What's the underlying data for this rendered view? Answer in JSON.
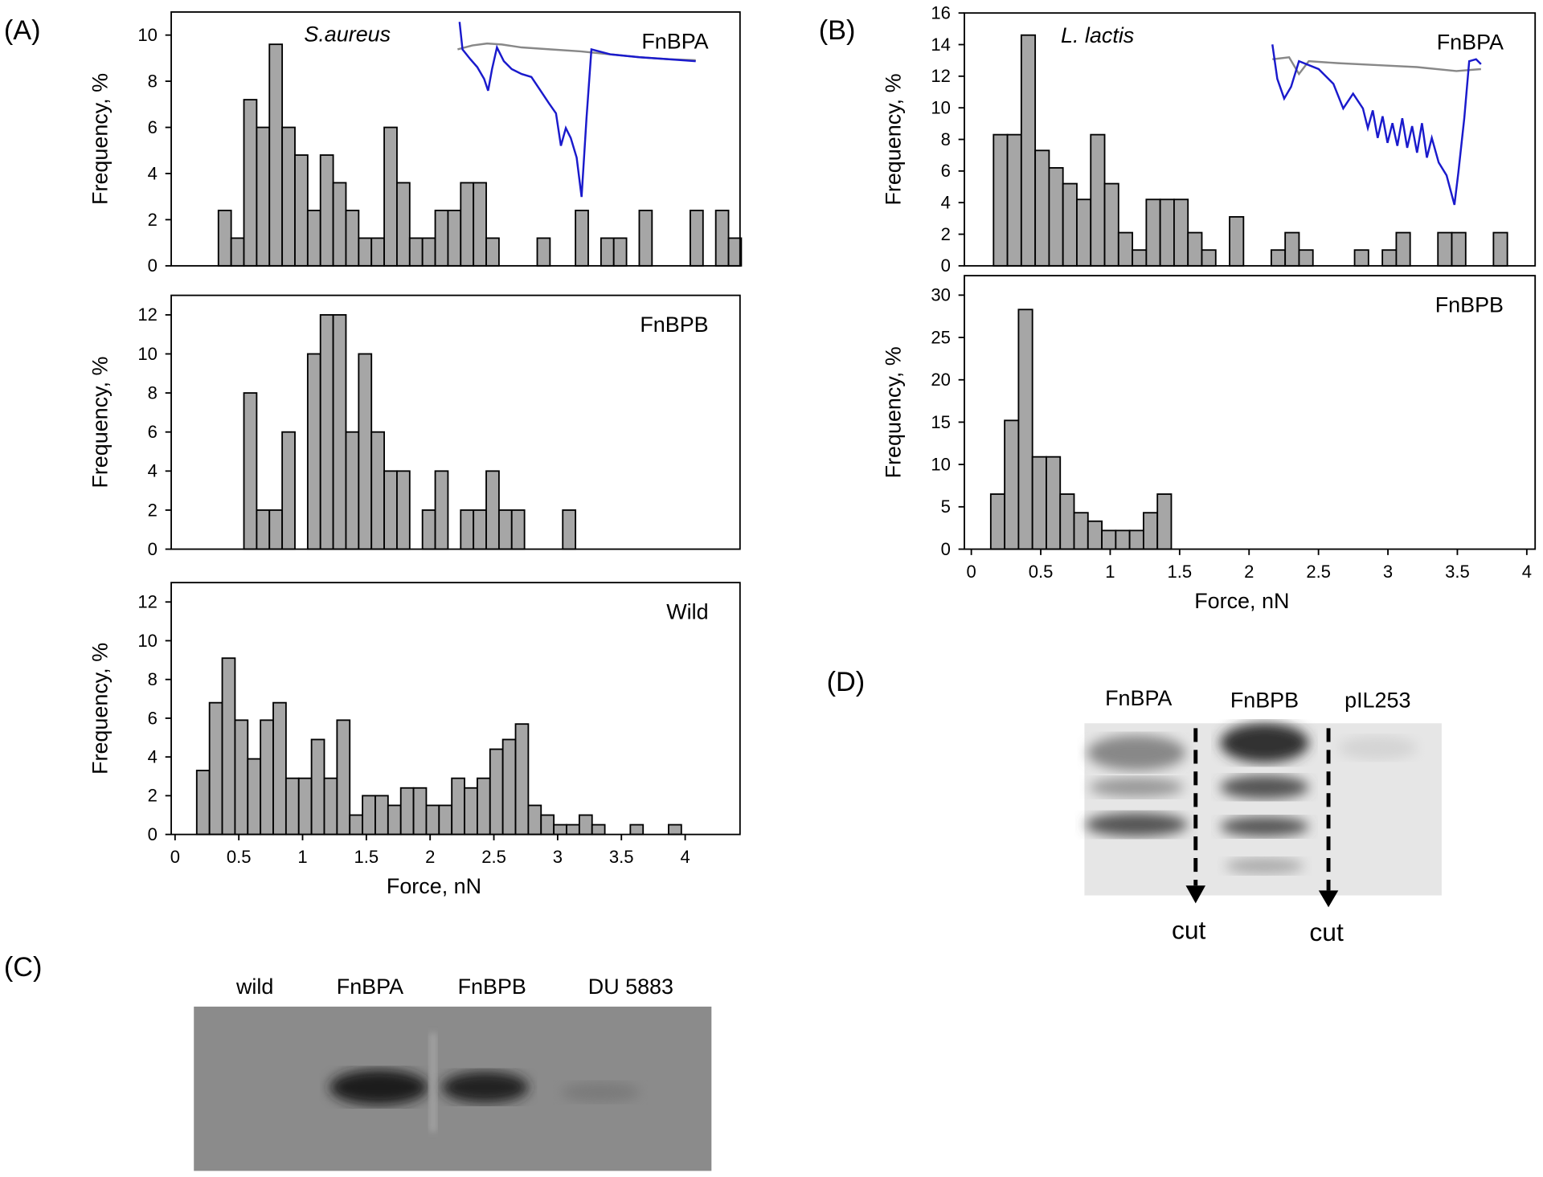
{
  "chart_data": [
    {
      "type": "histogram",
      "title": "FnBPA",
      "annotation": "S.aureus",
      "y_label": "Frequency, %",
      "color": "#a6a6a6",
      "bins": [
        0.34,
        0.44,
        0.54,
        0.64,
        0.74,
        0.84,
        0.94,
        1.04,
        1.14,
        1.24,
        1.34,
        1.44,
        1.54,
        1.64,
        1.74,
        1.84,
        1.94,
        2.04,
        2.14,
        2.24,
        2.34,
        2.44,
        2.54,
        2.64,
        2.74,
        2.84,
        2.94,
        3.04,
        3.14,
        3.24,
        3.34,
        3.44,
        3.54,
        3.64,
        3.74,
        3.84,
        3.94,
        4.04,
        4.14,
        4.24,
        4.34,
        4.44
      ],
      "values": [
        2.4,
        1.2,
        7.2,
        6.0,
        9.6,
        6.0,
        4.8,
        2.4,
        4.8,
        3.6,
        2.4,
        1.2,
        1.2,
        6.0,
        3.6,
        1.2,
        1.2,
        2.4,
        2.4,
        3.6,
        3.6,
        1.2,
        0,
        0,
        0,
        1.2,
        0,
        0,
        2.4,
        0,
        1.2,
        1.2,
        0,
        2.4,
        0,
        0,
        0,
        2.4,
        0,
        2.4,
        1.2
      ],
      "xlim": [
        -0.03,
        4.43
      ],
      "ylim": [
        0,
        11
      ],
      "yticks": [
        0,
        2,
        4,
        6,
        8,
        10
      ]
    },
    {
      "type": "histogram",
      "title": "FnBPB",
      "y_label": "Frequency, %",
      "color": "#a6a6a6",
      "bins": [
        0.34,
        0.44,
        0.54,
        0.64,
        0.74,
        0.84,
        0.94,
        1.04,
        1.14,
        1.24,
        1.34,
        1.44,
        1.54,
        1.64,
        1.74,
        1.84,
        1.94,
        2.04,
        2.14,
        2.24,
        2.34,
        2.44,
        2.54,
        2.64,
        2.74,
        2.84,
        2.94,
        3.04,
        3.14,
        3.24,
        3.34,
        3.44,
        3.54,
        3.64,
        3.74,
        3.84,
        3.94,
        4.04,
        4.14,
        4.24,
        4.34,
        4.44
      ],
      "values": [
        0,
        0,
        8,
        2,
        2,
        6,
        0,
        10,
        12,
        12,
        6,
        10,
        6,
        4,
        4,
        0,
        2,
        4,
        0,
        2,
        2,
        4,
        2,
        2,
        0,
        0,
        0,
        2,
        0,
        0,
        0,
        0,
        0,
        0,
        0,
        0,
        0,
        0,
        0,
        0,
        0
      ],
      "xlim": [
        -0.03,
        4.43
      ],
      "ylim": [
        0,
        13
      ],
      "yticks": [
        0,
        2,
        4,
        6,
        8,
        10,
        12
      ]
    },
    {
      "type": "histogram",
      "title": "Wild",
      "y_label": "Frequency, %",
      "x_label": "Force, nN",
      "color": "#a6a6a6",
      "bins": [
        0.17,
        0.27,
        0.37,
        0.47,
        0.57,
        0.67,
        0.77,
        0.87,
        0.97,
        1.07,
        1.17,
        1.27,
        1.37,
        1.47,
        1.57,
        1.67,
        1.77,
        1.87,
        1.97,
        2.07,
        2.17,
        2.27,
        2.37,
        2.47,
        2.57,
        2.67,
        2.77,
        2.87,
        2.97,
        3.07,
        3.17,
        3.27,
        3.37,
        3.47,
        3.57,
        3.67,
        3.77,
        3.87,
        3.97,
        4.07,
        4.17,
        4.27,
        4.37
      ],
      "values": [
        3.3,
        6.8,
        9.1,
        5.9,
        3.9,
        5.9,
        6.8,
        2.9,
        2.9,
        4.9,
        2.9,
        5.9,
        1.0,
        2.0,
        2.0,
        1.5,
        2.4,
        2.4,
        1.5,
        1.5,
        2.9,
        2.4,
        2.9,
        4.4,
        4.9,
        5.7,
        1.5,
        1.0,
        0.5,
        0.5,
        1.0,
        0.5,
        0,
        0,
        0.5,
        0,
        0,
        0.5,
        0,
        0,
        0,
        0
      ],
      "xlim": [
        -0.03,
        4.43
      ],
      "ylim": [
        0,
        13
      ],
      "yticks": [
        0,
        2,
        4,
        6,
        8,
        10,
        12
      ],
      "xticks": [
        0,
        0.5,
        1,
        1.5,
        2,
        2.5,
        3,
        3.5,
        4
      ]
    },
    {
      "type": "histogram",
      "title": "FnBPA",
      "annotation": "L. lactis",
      "y_label": "Frequency, %",
      "color": "#a6a6a6",
      "bins": [
        0.16,
        0.26,
        0.36,
        0.46,
        0.56,
        0.66,
        0.76,
        0.86,
        0.96,
        1.06,
        1.16,
        1.26,
        1.36,
        1.46,
        1.56,
        1.66,
        1.76,
        1.86,
        1.96,
        2.06,
        2.16,
        2.26,
        2.36,
        2.46,
        2.56,
        2.66,
        2.76,
        2.86,
        2.96,
        3.06,
        3.16,
        3.26,
        3.36,
        3.46,
        3.56,
        3.66,
        3.76,
        3.86,
        3.96
      ],
      "values": [
        8.3,
        8.3,
        14.6,
        7.3,
        6.2,
        5.2,
        4.2,
        8.3,
        5.2,
        2.1,
        1.0,
        4.2,
        4.2,
        4.2,
        2.1,
        1.0,
        0,
        3.1,
        0,
        0,
        1.0,
        2.1,
        1.0,
        0,
        0,
        0,
        1.0,
        0,
        1.0,
        2.1,
        0,
        0,
        2.1,
        2.1,
        0,
        0,
        2.1,
        0
      ],
      "xlim": [
        -0.05,
        4.06
      ],
      "ylim": [
        0,
        16
      ],
      "yticks": [
        0,
        2,
        4,
        6,
        8,
        10,
        12,
        14,
        16
      ]
    },
    {
      "type": "histogram",
      "title": "FnBPB",
      "y_label": "Frequency, %",
      "x_label": "Force, nN",
      "color": "#a6a6a6",
      "bins": [
        0.14,
        0.24,
        0.34,
        0.44,
        0.54,
        0.64,
        0.74,
        0.84,
        0.94,
        1.04,
        1.14,
        1.24,
        1.34,
        1.44
      ],
      "values": [
        6.5,
        15.2,
        28.3,
        10.9,
        10.9,
        6.5,
        4.3,
        3.3,
        2.2,
        2.2,
        2.2,
        4.3,
        6.5
      ],
      "xlim": [
        -0.05,
        4.06
      ],
      "ylim": [
        0,
        32.3
      ],
      "yticks": [
        0,
        5,
        10,
        15,
        20,
        25,
        30
      ],
      "xticks": [
        0,
        0.5,
        1,
        1.5,
        2,
        2.5,
        3,
        3.5,
        4
      ]
    }
  ],
  "panel_labels": [
    "(A)",
    "(B)",
    "(C)",
    "(D)"
  ],
  "gel_c": {
    "lanes": [
      "wild",
      "FnBPA",
      "FnBPB",
      "DU 5883"
    ]
  },
  "gel_d": {
    "lanes": [
      "FnBPA",
      "FnBPB",
      "pIL253"
    ],
    "markers": [
      "cut",
      "cut"
    ]
  }
}
